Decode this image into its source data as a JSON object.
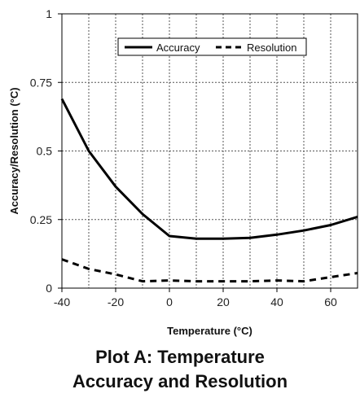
{
  "caption": {
    "line1": "Plot A: Temperature",
    "line2": "Accuracy and Resolution"
  },
  "chart_data": {
    "type": "line",
    "xlabel": "Temperature  (°C)",
    "ylabel": "Accuracy/Resolution  (°C)",
    "xlim": [
      -40,
      70
    ],
    "ylim": [
      0,
      1
    ],
    "x_ticks": [
      -40,
      -20,
      0,
      20,
      40,
      60
    ],
    "x_tick_labels": [
      "-40",
      "-20",
      "0",
      "20",
      "40",
      "60"
    ],
    "y_ticks": [
      0,
      0.25,
      0.5,
      0.75,
      1
    ],
    "y_tick_labels": [
      "0",
      "0.25",
      "0.5",
      "0.75",
      "1"
    ],
    "x_grid": [
      -30,
      -20,
      -10,
      0,
      10,
      20,
      30,
      40,
      50,
      60
    ],
    "y_grid": [
      0.25,
      0.5,
      0.75
    ],
    "grid": true,
    "legend_position": "top-center",
    "series": [
      {
        "name": "Accuracy",
        "style": "solid",
        "color": "#000000",
        "x": [
          -40,
          -30,
          -20,
          -10,
          0,
          10,
          20,
          30,
          40,
          50,
          60,
          70
        ],
        "y": [
          0.69,
          0.5,
          0.37,
          0.27,
          0.19,
          0.18,
          0.18,
          0.183,
          0.195,
          0.21,
          0.23,
          0.26
        ]
      },
      {
        "name": "Resolution",
        "style": "dashed",
        "color": "#000000",
        "x": [
          -40,
          -30,
          -20,
          -10,
          0,
          10,
          20,
          30,
          40,
          50,
          60,
          70
        ],
        "y": [
          0.105,
          0.07,
          0.05,
          0.025,
          0.028,
          0.025,
          0.025,
          0.025,
          0.028,
          0.025,
          0.04,
          0.055
        ]
      }
    ]
  }
}
